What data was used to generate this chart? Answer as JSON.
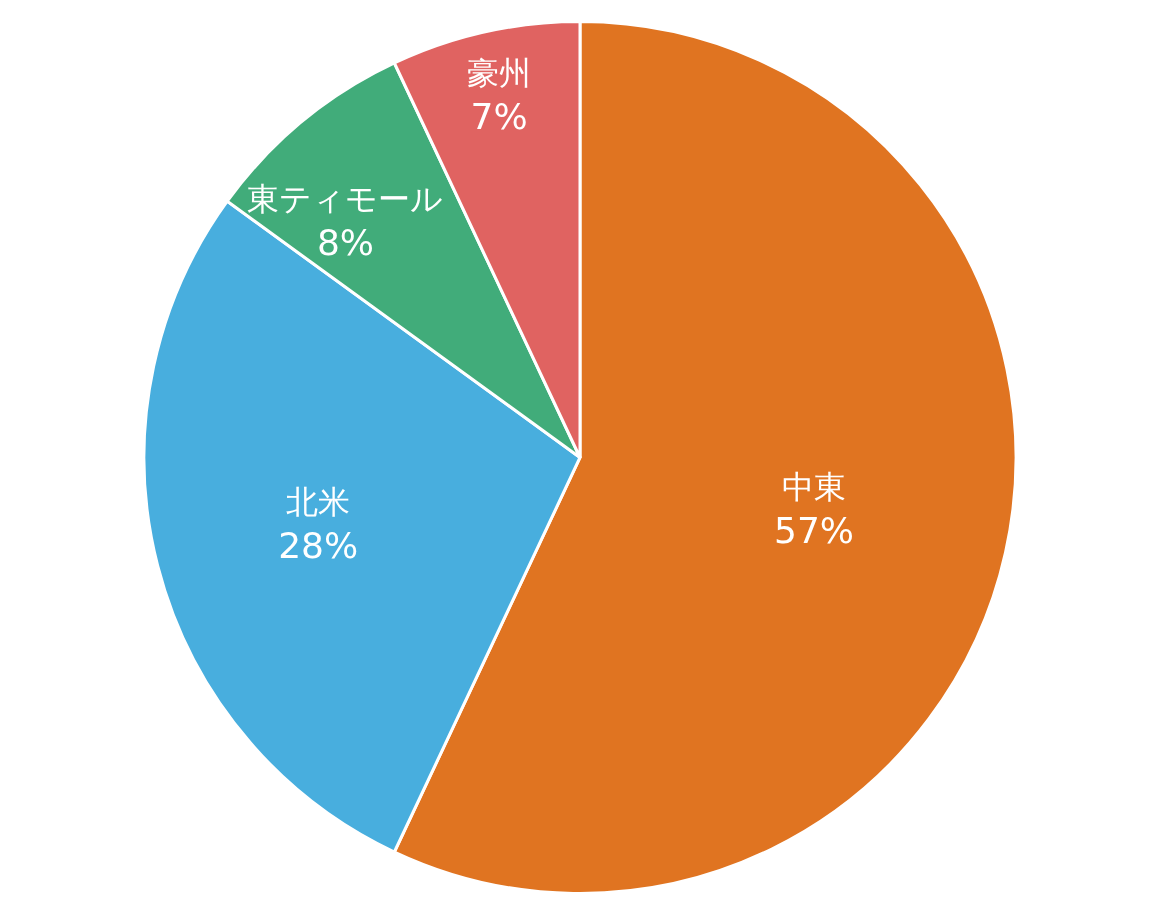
{
  "chart_data": {
    "type": "pie",
    "categories": [
      "中東",
      "北米",
      "東ティモール",
      "豪州"
    ],
    "values": [
      57,
      28,
      8,
      7
    ],
    "value_labels": [
      "57%",
      "28%",
      "8%",
      "7%"
    ],
    "colors": [
      "#e07421",
      "#48aede",
      "#41ac7a",
      "#e06361"
    ]
  }
}
